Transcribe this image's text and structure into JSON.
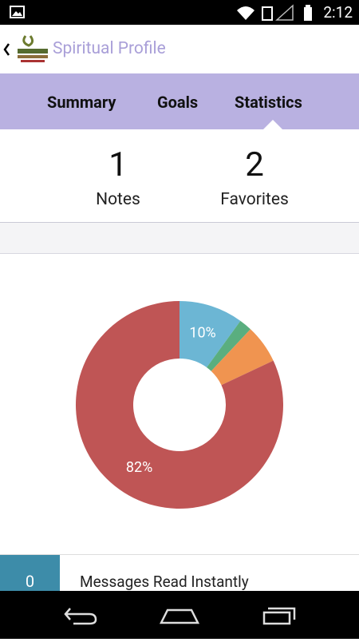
{
  "status_bar": {
    "time": "2:12"
  },
  "app_bar": {
    "title": "Spiritual Profile"
  },
  "tabs": [
    "Summary",
    "Goals",
    "Statistics"
  ],
  "stats": [
    {
      "value": "1",
      "label": "Notes"
    },
    {
      "value": "2",
      "label": "Favorites"
    }
  ],
  "chart_data": {
    "type": "donut",
    "values": [
      10,
      2,
      6,
      82
    ],
    "value_labels": [
      "10%",
      null,
      null,
      "82%"
    ],
    "colors": [
      "#6cb6d4",
      "#5aae7f",
      "#f09450",
      "#bf5555"
    ]
  },
  "list": [
    {
      "count": "0",
      "label": "Messages Read Instantly"
    }
  ]
}
